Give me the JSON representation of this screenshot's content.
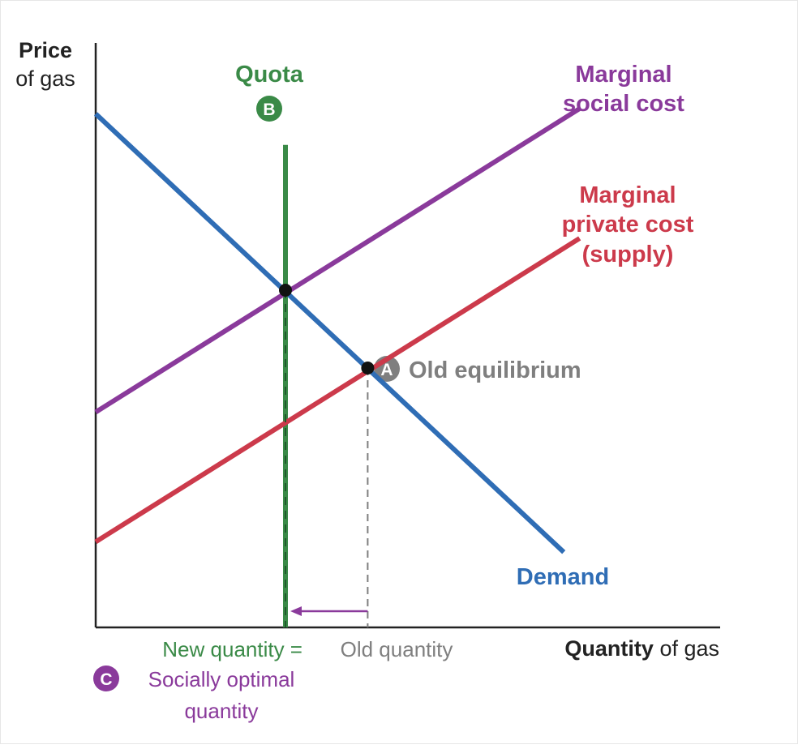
{
  "chart_data": {
    "type": "line",
    "ylabel_bold": "Price",
    "ylabel_rest": "of gas",
    "xlabel_bold": "Quantity",
    "xlabel_rest": " of gas",
    "xlim": [
      0,
      10
    ],
    "ylim": [
      0,
      10
    ],
    "colors": {
      "demand": "#2f6db5",
      "social": "#8a3a9b",
      "private": "#cc3a4b",
      "quota": "#3a8a47",
      "grey": "#7f7f7f",
      "axis": "#222222"
    },
    "series": [
      {
        "key": "demand",
        "label": "Demand",
        "x": [
          0,
          7.4
        ],
        "y": [
          9.9,
          1.45
        ]
      },
      {
        "key": "social",
        "label_lines": [
          "Marginal",
          "social cost"
        ],
        "x": [
          0,
          7.65
        ],
        "y": [
          4.15,
          10.0
        ]
      },
      {
        "key": "private",
        "label_lines": [
          "Marginal",
          "private cost",
          "(supply)"
        ],
        "x": [
          0,
          7.65
        ],
        "y": [
          1.65,
          7.5
        ]
      }
    ],
    "quota": {
      "label": "Quota",
      "badge": "B",
      "x": 3.0,
      "y_top": 9.3
    },
    "points": [
      {
        "key": "new",
        "x": 3.0,
        "y": 6.5
      },
      {
        "key": "old",
        "x": 4.3,
        "y": 5.0,
        "badge": "A",
        "label": "Old equilibrium"
      }
    ],
    "annotations": {
      "new_quantity": "New quantity =",
      "socially_optimal_line1": "Socially optimal",
      "socially_optimal_line2": "quantity",
      "badge_c": "C",
      "old_quantity": "Old quantity"
    }
  }
}
